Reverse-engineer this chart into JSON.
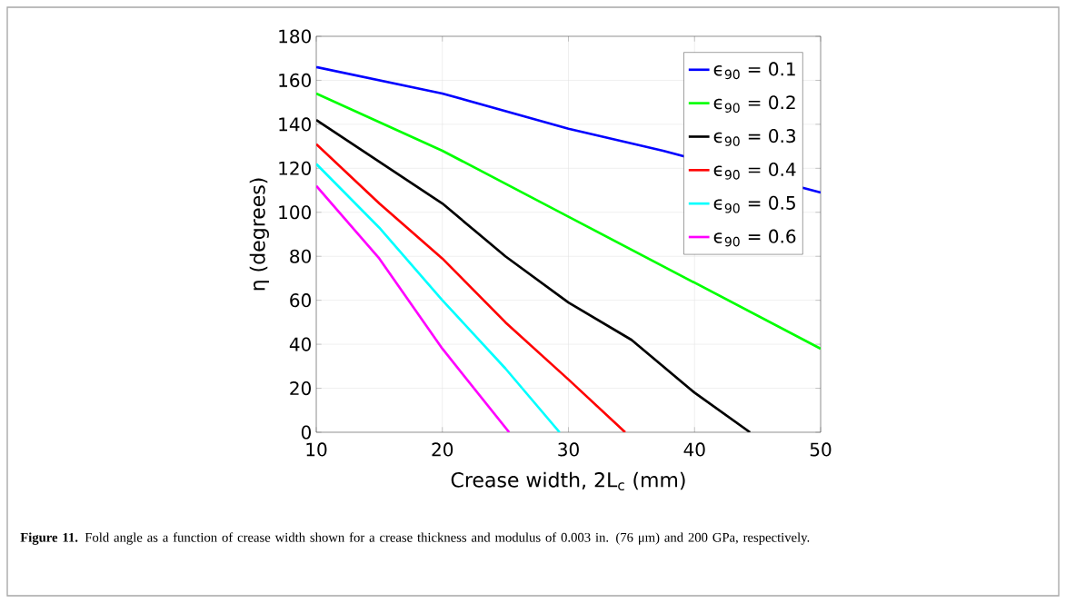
{
  "chart_data": {
    "type": "line",
    "xlabel": "Crease width, 2L$_{c}$ (mm)",
    "ylabel": "η (degrees)",
    "xlim": [
      10,
      50
    ],
    "ylim": [
      0,
      180
    ],
    "xticks": [
      10,
      20,
      30,
      40,
      50
    ],
    "yticks": [
      0,
      20,
      40,
      60,
      80,
      100,
      120,
      140,
      160,
      180
    ],
    "grid": true,
    "legend": "top right",
    "line_style": "solid",
    "marker": "none",
    "annotations": [
      "**Figure 11.** Fold angle as a function of crease width shown for a crease thickness and modulus of 0.003 in. (76 μm) and 200 GPa, respectively."
    ],
    "series": [
      {
        "name": "ϵ$_{90}$ = 0.1",
        "color": "#0000ff",
        "x": [
          10,
          20,
          30,
          37.5,
          50
        ],
        "values": [
          166,
          154,
          138,
          128,
          109
        ]
      },
      {
        "name": "ϵ$_{90}$ = 0.2",
        "color": "#00ff00",
        "x": [
          10,
          20,
          30,
          40,
          50
        ],
        "values": [
          154,
          128,
          98,
          68,
          38
        ]
      },
      {
        "name": "ϵ$_{90}$ = 0.3",
        "color": "#000000",
        "x": [
          10,
          20,
          25,
          30,
          35,
          40,
          44.4
        ],
        "values": [
          142,
          104,
          80,
          59,
          42,
          18,
          0
        ]
      },
      {
        "name": "ϵ$_{90}$ = 0.4",
        "color": "#ff0000",
        "x": [
          10,
          15,
          20,
          25,
          30,
          34.5
        ],
        "values": [
          131,
          104,
          79,
          50,
          24,
          0
        ]
      },
      {
        "name": "ϵ$_{90}$ = 0.5",
        "color": "#00ffff",
        "x": [
          10,
          15,
          20,
          25,
          29.3
        ],
        "values": [
          122,
          93,
          60,
          29,
          0
        ]
      },
      {
        "name": "ϵ$_{90}$ = 0.6",
        "color": "#ff00ff",
        "x": [
          10,
          15,
          20,
          25.3
        ],
        "values": [
          112,
          79,
          38,
          0
        ]
      }
    ]
  }
}
